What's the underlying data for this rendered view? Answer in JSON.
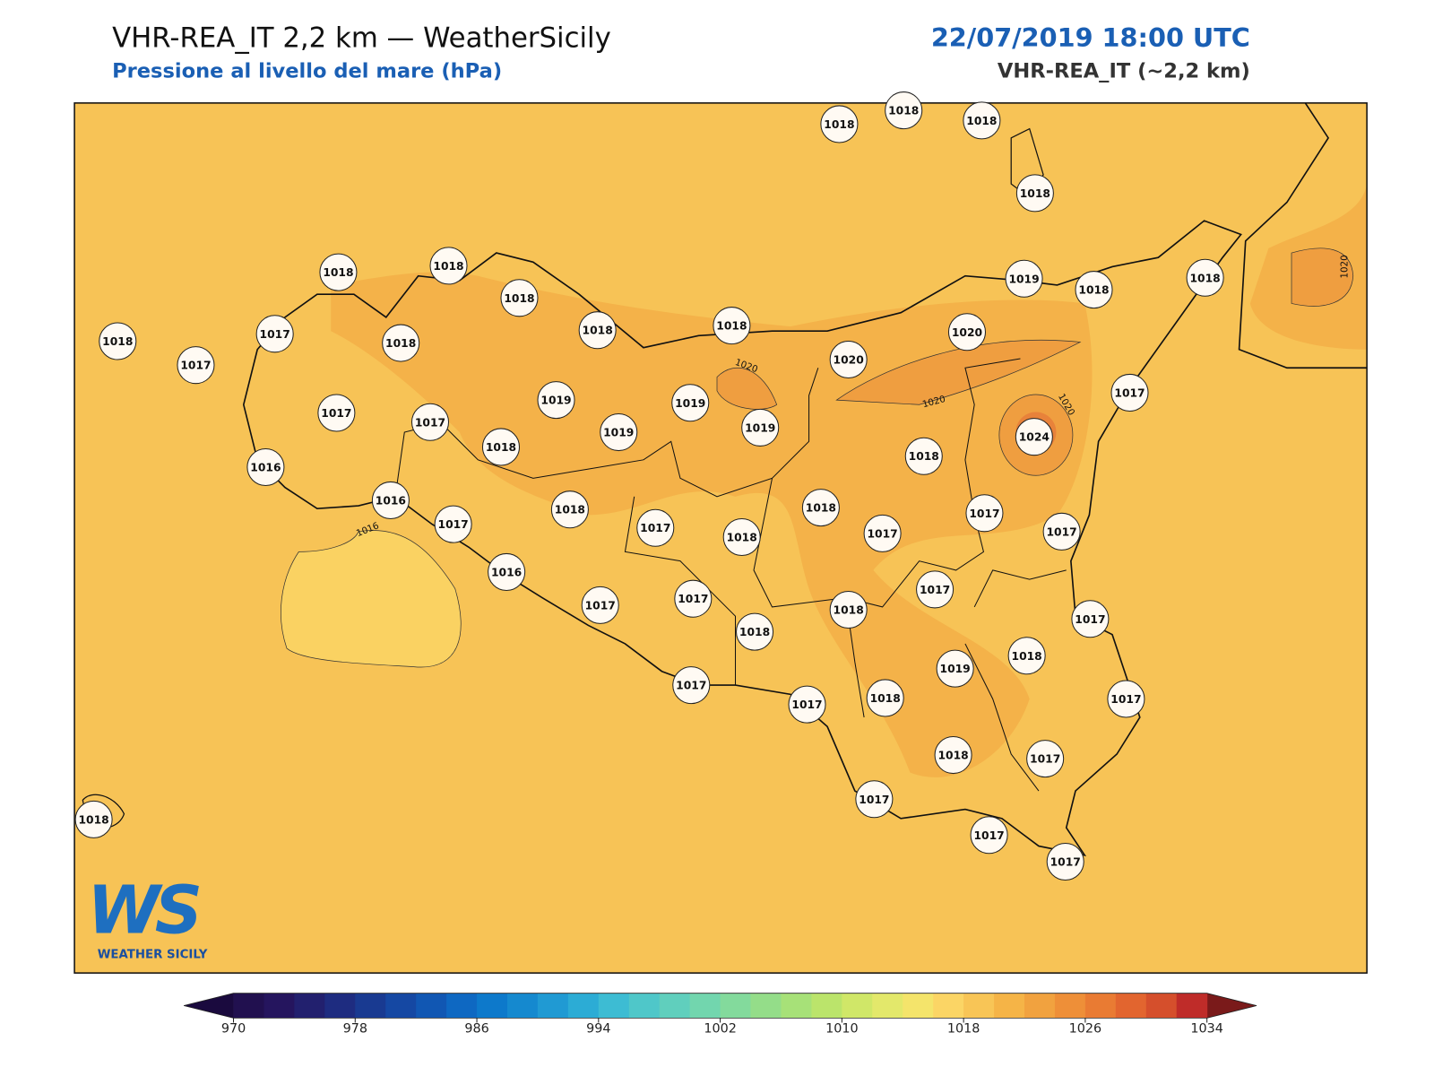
{
  "header": {
    "title": "VHR-REA_IT 2,2 km — WeatherSicily",
    "subtitle": "Pressione al livello del mare (hPa)",
    "datetime": "22/07/2019 18:00 UTC",
    "model": "VHR-REA_IT (~2,2 km)"
  },
  "map": {
    "stations": [
      1018,
      1018,
      1018,
      1018,
      1018,
      1018,
      1018,
      1018,
      1018,
      1018,
      1017,
      1017,
      1018,
      1017,
      1017,
      1019,
      1019,
      1019,
      1019,
      1018,
      1016,
      1016,
      1017,
      1018,
      1017,
      1018,
      1018,
      1017,
      1018,
      1020,
      1020,
      1019,
      1018,
      1018,
      1017,
      1024,
      1017,
      1017,
      1016,
      1017,
      1017,
      1018,
      1018,
      1017,
      1017,
      1018,
      1019,
      1017,
      1017,
      1017,
      1018,
      1018,
      1017,
      1017,
      1017,
      1017,
      1018
    ],
    "contour_labels": [
      1020,
      1020,
      1020,
      1020,
      1016
    ]
  },
  "colorbar": {
    "ticks": [
      970,
      978,
      986,
      994,
      1002,
      1010,
      1018,
      1026,
      1034
    ],
    "colors": [
      "#21104f",
      "#25155e",
      "#22206e",
      "#1e2c80",
      "#193a91",
      "#1548a3",
      "#1157b3",
      "#0e68c2",
      "#0d79cb",
      "#1589cf",
      "#209ad3",
      "#2cacd5",
      "#3dbcd3",
      "#4fc7c9",
      "#60cfbd",
      "#72d6ae",
      "#83da9c",
      "#94dd89",
      "#a7e178",
      "#bbe46b",
      "#d0e768",
      "#e3e86b",
      "#f4e46b",
      "#fbd565",
      "#f8c556",
      "#f5b447",
      "#f1a23f",
      "#ee8f38",
      "#e97b33",
      "#e2652f",
      "#d54f2c",
      "#bf2c29"
    ],
    "under_color": "#1a0a3e",
    "over_color": "#7a1a1a"
  },
  "logo": {
    "mark": "WS",
    "name": "WEATHER SICILY"
  }
}
